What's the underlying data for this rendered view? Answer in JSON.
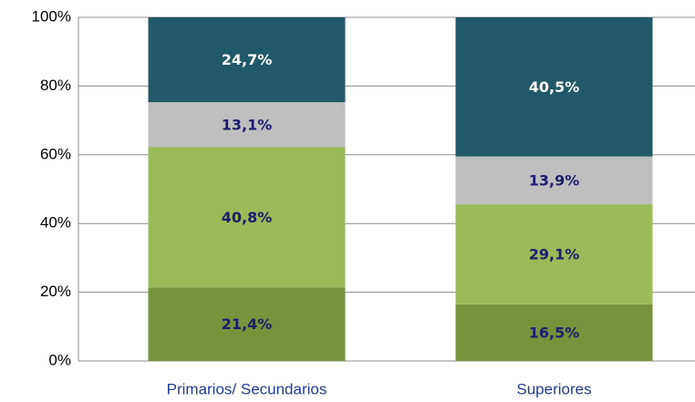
{
  "chart_data": {
    "type": "stacked_bar",
    "categories": [
      "Primarios/ Secundarios",
      "Superiores"
    ],
    "series": [
      {
        "color": "#77933c",
        "label_color": "#1c1c70",
        "values": [
          21.4,
          16.5
        ],
        "value_labels": [
          "21,4%",
          "16,5%"
        ]
      },
      {
        "color": "#9bbb59",
        "label_color": "#1c1c70",
        "values": [
          40.8,
          29.1
        ],
        "value_labels": [
          "40,8%",
          "29,1%"
        ]
      },
      {
        "color": "#bfbfbf",
        "label_color": "#1c1c70",
        "values": [
          13.1,
          13.9
        ],
        "value_labels": [
          "13,1%",
          "13,9%"
        ]
      },
      {
        "color": "#215968",
        "label_color": "#ffffff",
        "values": [
          24.7,
          40.5
        ],
        "value_labels": [
          "24,7%",
          "40,5%"
        ]
      }
    ],
    "ylim": [
      0,
      100
    ],
    "yticks": [
      {
        "value": 0,
        "label": "0%"
      },
      {
        "value": 20,
        "label": "20%"
      },
      {
        "value": 40,
        "label": "40%"
      },
      {
        "value": 60,
        "label": "60%"
      },
      {
        "value": 80,
        "label": "80%"
      },
      {
        "value": 100,
        "label": "100%"
      }
    ],
    "grid": true
  }
}
